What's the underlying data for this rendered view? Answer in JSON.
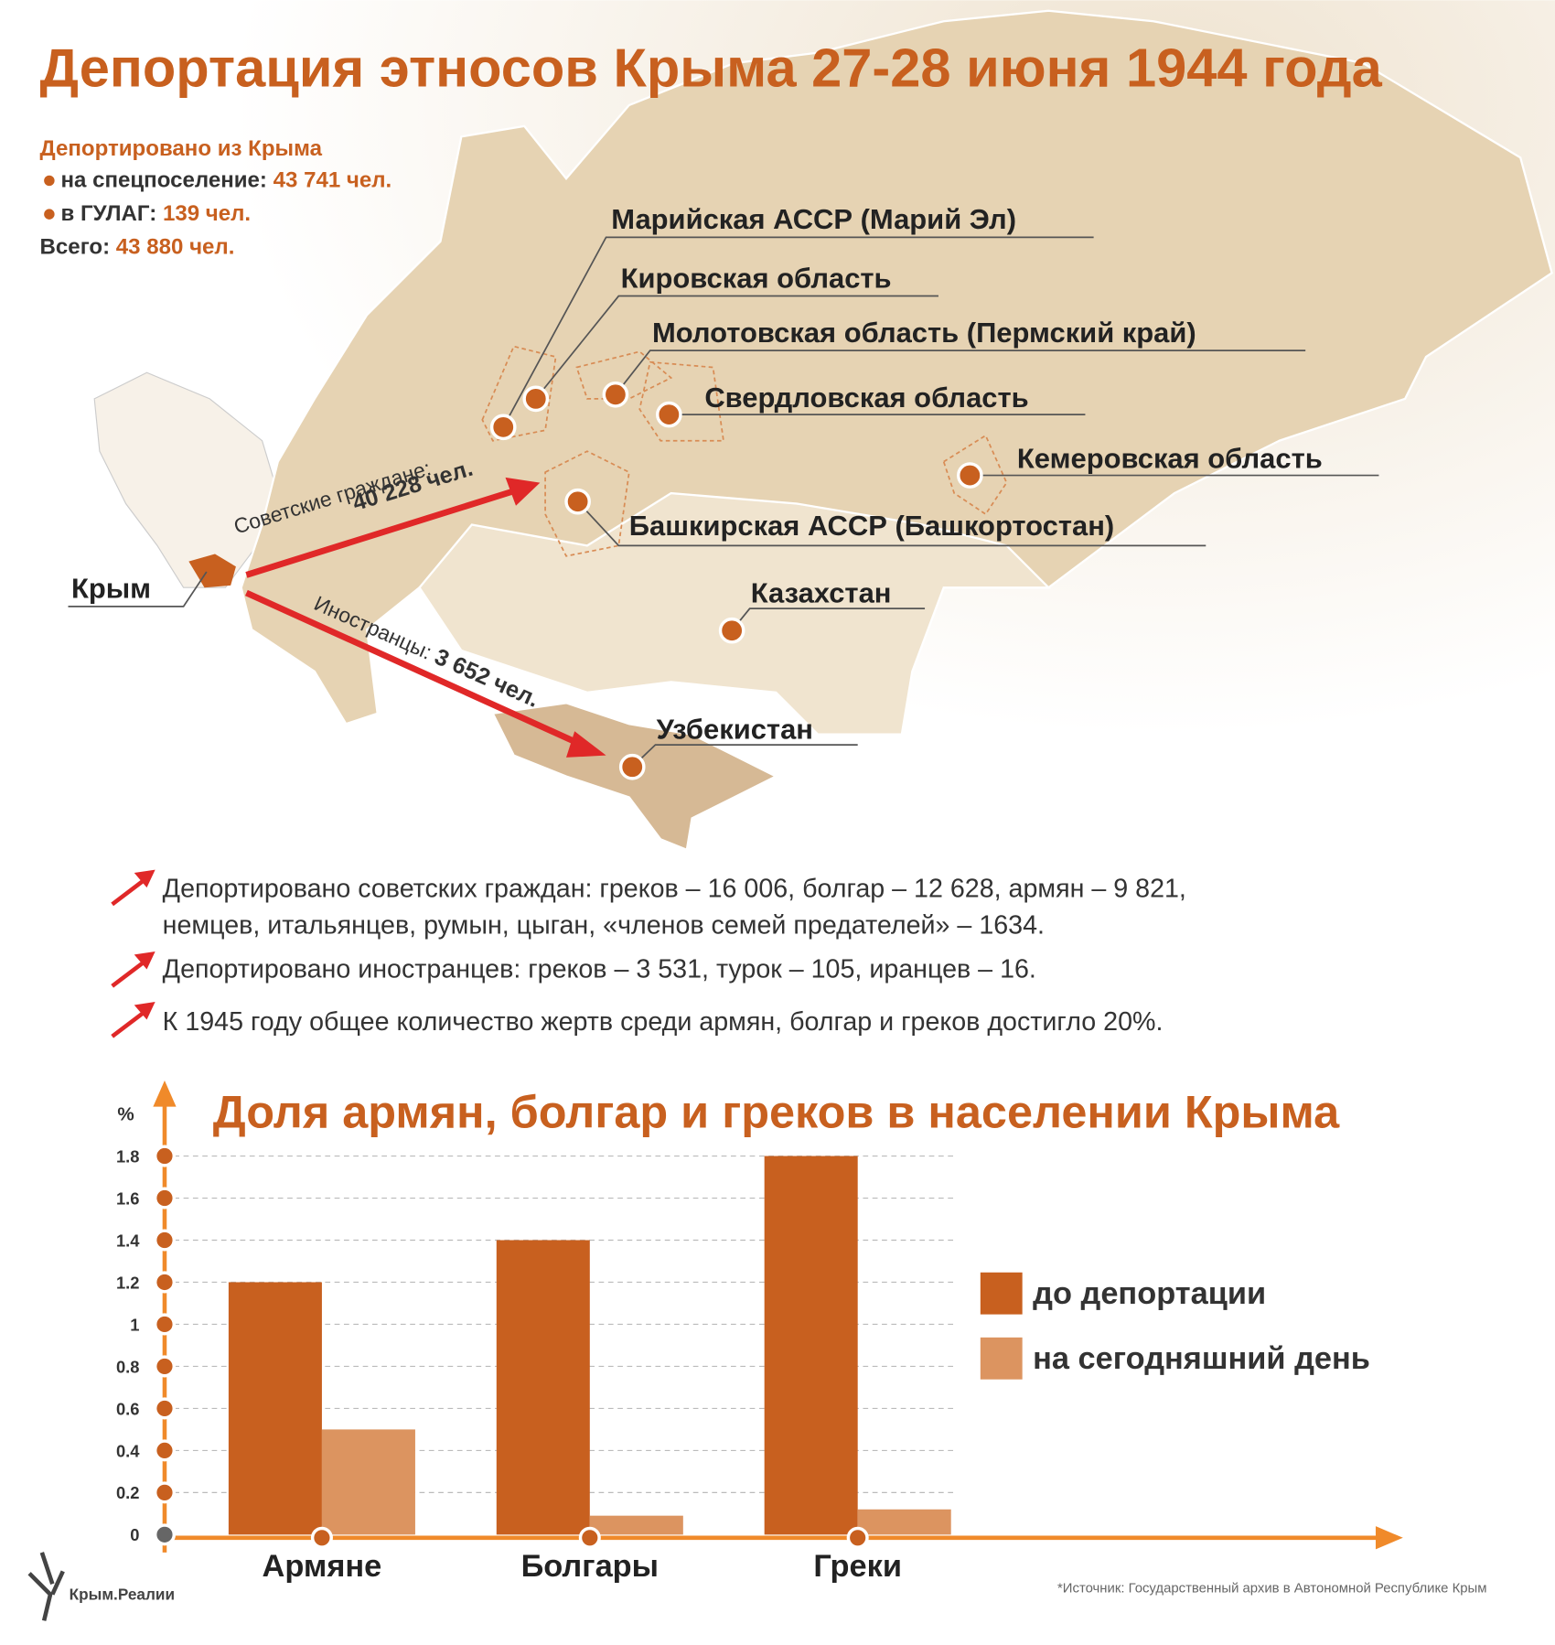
{
  "header": {
    "title": "Депортация этносов Крыма 27-28 июня 1944 года"
  },
  "summary": {
    "heading": "Депортировано из Крыма",
    "items": [
      {
        "label": "на спецпоселение:",
        "value": "43 741 чел."
      },
      {
        "label": "в ГУЛАГ:",
        "value": "139 чел."
      },
      {
        "label": "Всего:",
        "value": "43 880 чел."
      }
    ]
  },
  "map": {
    "origin": "Крым",
    "regions": [
      "Марийская АССР (Марий Эл)",
      "Кировская область",
      "Молотовская область (Пермский край)",
      "Свердловская область",
      "Кемеровская область",
      "Башкирская АССР (Башкортостан)",
      "Казахстан",
      "Узбекистан"
    ],
    "arrows": [
      {
        "label": "Советские граждане:",
        "value": "40 228 чел."
      },
      {
        "label": "Иностранцы:",
        "value": "3 652 чел."
      }
    ]
  },
  "notes": [
    [
      "Депортировано советских граждан: греков – 16 006, болгар – 12 628, армян – 9 821,",
      "немцев, итальянцев, румын, цыган, «членов семей предателей» – 1634."
    ],
    [
      "Депортировано иностранцев: греков – 3 531, турок – 105, иранцев – 16."
    ],
    [
      "К 1945 году общее количество жертв среди армян, болгар и греков достигло 20%."
    ]
  ],
  "chart_data": {
    "type": "bar",
    "title": "Доля армян, болгар и греков в населении Крыма",
    "y_label": "%",
    "categories": [
      "Армяне",
      "Болгары",
      "Греки"
    ],
    "series": [
      {
        "name": "до депортации",
        "color": "#c8601f",
        "values": [
          1.2,
          1.4,
          1.8
        ]
      },
      {
        "name": "на сегодняшний день",
        "color": "#dc9460",
        "values": [
          0.5,
          0.09,
          0.12
        ]
      }
    ],
    "ylim": [
      0,
      1.8
    ],
    "yticks": [
      0,
      0.2,
      0.4,
      0.6,
      0.8,
      1,
      1.2,
      1.4,
      1.6,
      1.8
    ],
    "grid": true
  },
  "footer": {
    "source": "*Источник: Государственный архив в Автономной Республике Крым",
    "logo": "Крым.Реалии"
  }
}
